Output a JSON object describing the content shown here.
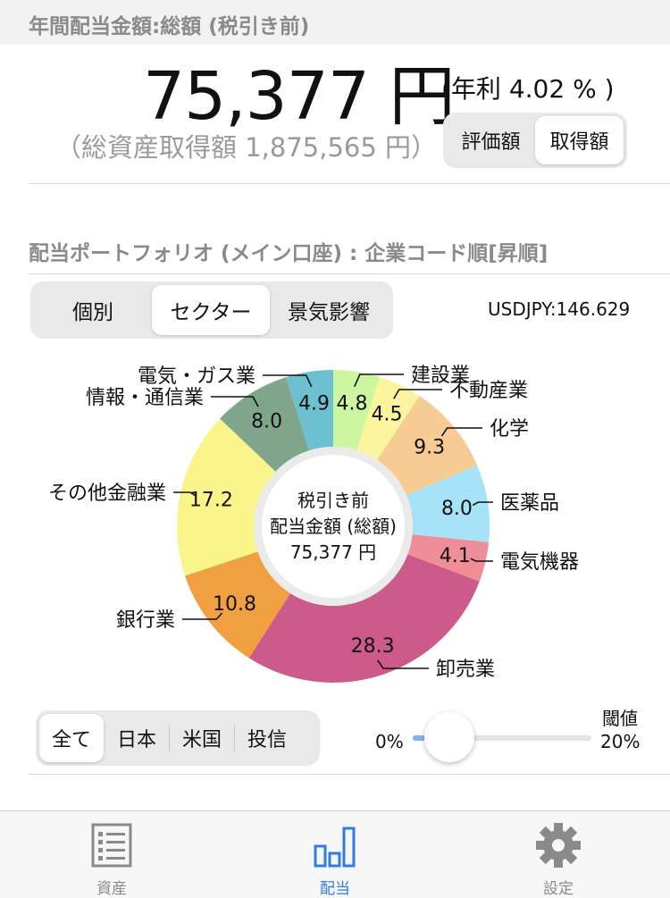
{
  "header": {
    "title": "年間配当金額:総額 (税引き前)"
  },
  "hero": {
    "amount": "75,377 円",
    "yield": "(年利 4.02 % )",
    "total_cost": "（総資産取得額 1,875,565 円）"
  },
  "valuation_toggle": {
    "options": [
      "評価額",
      "取得額"
    ],
    "selected": "取得額"
  },
  "portfolio": {
    "title": "配当ポートフォリオ (メイン口座) : 企業コード順[昇順]"
  },
  "view_toggle": {
    "options": [
      "個別",
      "セクター",
      "景気影響"
    ],
    "selected": "セクター"
  },
  "fx": {
    "label": "USDJPY:146.629"
  },
  "donut_center": {
    "line1": "税引き前",
    "line2": "配当金額 (総額)",
    "line3": "75,377 円"
  },
  "chart_data": {
    "type": "pie",
    "title": "",
    "unit": "%",
    "categories": [
      "建設業",
      "不動産業",
      "化学",
      "医薬品",
      "電気機器",
      "卸売業",
      "銀行業",
      "その他金融業",
      "情報・通信業",
      "電気・ガス業"
    ],
    "values": [
      4.8,
      4.5,
      9.3,
      8.0,
      4.1,
      28.3,
      10.8,
      17.2,
      8.0,
      4.9
    ],
    "labels": [
      "4.8",
      "4.5",
      "9.3",
      "8.0",
      "4.1",
      "28.3",
      "10.8",
      "17.2",
      "8.0",
      "4.9"
    ],
    "colors": [
      "#ccf7a0",
      "#fbf59d",
      "#f6cc94",
      "#a6e3f8",
      "#ef8d98",
      "#cc5a8a",
      "#f0a040",
      "#faf58a",
      "#7fa68a",
      "#6cc0d0"
    ]
  },
  "region_toggle": {
    "options": [
      "全て",
      "日本",
      "米国",
      "投信"
    ],
    "selected": "全て"
  },
  "threshold": {
    "label": "閾値",
    "min_label": "0%",
    "max_label": "20%",
    "value": 0
  },
  "tabbar": {
    "items": [
      {
        "label": "資産",
        "icon": "list-icon"
      },
      {
        "label": "配当",
        "icon": "bar-chart-icon"
      },
      {
        "label": "設定",
        "icon": "gear-icon"
      }
    ],
    "active": "配当"
  }
}
